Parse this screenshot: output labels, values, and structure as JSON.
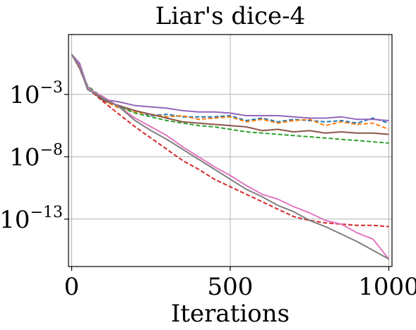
{
  "chart_data": {
    "type": "line",
    "title": "Liar's dice-4",
    "xlabel": "Iterations",
    "ylabel": "",
    "xlim": [
      -10,
      1010
    ],
    "ylim_log10": [
      -16.8,
      1.8
    ],
    "y_scale": "log",
    "grid": true,
    "x_ticks": [
      0,
      500,
      1000
    ],
    "x_tick_labels": [
      "0",
      "500",
      "1000"
    ],
    "y_ticks": [
      -3,
      -8,
      -13
    ],
    "y_tick_labels": [
      {
        "base": "10",
        "exp": "−3"
      },
      {
        "base": "10",
        "exp": "−8"
      },
      {
        "base": "10",
        "exp": "−13"
      }
    ],
    "x": [
      0,
      25,
      50,
      100,
      150,
      200,
      250,
      300,
      350,
      400,
      450,
      500,
      550,
      600,
      650,
      700,
      750,
      800,
      850,
      900,
      950,
      1000
    ],
    "series": [
      {
        "color": "#1f77b4",
        "dash": true,
        "log10_values": [
          0.2,
          -0.6,
          -2.6,
          -3.4,
          -4.0,
          -4.3,
          -4.7,
          -4.6,
          -4.8,
          -4.8,
          -4.8,
          -4.7,
          -5.1,
          -4.9,
          -5.2,
          -5.0,
          -5.1,
          -5.2,
          -5.1,
          -5.3,
          -4.9,
          -5.3
        ]
      },
      {
        "color": "#ff7f0e",
        "dash": true,
        "log10_values": [
          0.2,
          -0.8,
          -2.4,
          -3.5,
          -4.1,
          -4.4,
          -4.6,
          -4.8,
          -4.7,
          -5.0,
          -4.9,
          -4.8,
          -5.2,
          -5.0,
          -5.3,
          -5.1,
          -5.0,
          -5.5,
          -5.2,
          -5.4,
          -5.3,
          -5.8
        ]
      },
      {
        "color": "#2ca02c",
        "dash": true,
        "log10_values": [
          0.2,
          -0.8,
          -2.3,
          -3.3,
          -4.0,
          -4.5,
          -4.8,
          -5.1,
          -5.3,
          -5.5,
          -5.6,
          -5.8,
          -6.0,
          -6.1,
          -6.2,
          -6.3,
          -6.4,
          -6.5,
          -6.6,
          -6.7,
          -6.8,
          -6.9
        ]
      },
      {
        "color": "#d62728",
        "dash": true,
        "log10_values": [
          0.2,
          -0.9,
          -2.5,
          -3.6,
          -4.6,
          -5.6,
          -6.5,
          -7.4,
          -8.3,
          -9.0,
          -9.8,
          -10.4,
          -11.0,
          -11.6,
          -12.2,
          -12.8,
          -13.1,
          -13.3,
          -13.4,
          -13.5,
          -13.5,
          -13.6
        ]
      },
      {
        "color": "#9467bd",
        "dash": false,
        "log10_values": [
          0.2,
          -0.5,
          -2.4,
          -3.4,
          -3.6,
          -3.9,
          -4.0,
          -4.1,
          -4.3,
          -4.4,
          -4.4,
          -4.5,
          -4.7,
          -4.7,
          -4.7,
          -4.8,
          -4.9,
          -4.9,
          -4.8,
          -5.0,
          -5.0,
          -5.1
        ]
      },
      {
        "color": "#8c564b",
        "dash": false,
        "log10_values": [
          0.2,
          -0.9,
          -2.5,
          -3.5,
          -3.9,
          -4.3,
          -4.6,
          -4.9,
          -5.2,
          -5.3,
          -5.4,
          -5.5,
          -5.6,
          -5.9,
          -5.8,
          -6.0,
          -5.9,
          -6.1,
          -6.0,
          -6.1,
          -6.1,
          -6.2
        ]
      },
      {
        "color": "#e377c2",
        "dash": false,
        "log10_values": [
          0.2,
          -0.7,
          -2.5,
          -3.2,
          -4.0,
          -4.9,
          -5.6,
          -6.3,
          -7.2,
          -8.0,
          -8.8,
          -9.5,
          -10.3,
          -11.0,
          -11.4,
          -12.0,
          -12.5,
          -13.1,
          -13.4,
          -14.1,
          -14.6,
          -16.2
        ]
      },
      {
        "color": "#7f7f7f",
        "dash": false,
        "log10_values": [
          0.2,
          -0.8,
          -2.6,
          -3.3,
          -4.0,
          -5.1,
          -5.9,
          -6.6,
          -7.4,
          -8.2,
          -9.0,
          -9.8,
          -10.6,
          -11.2,
          -11.9,
          -12.4,
          -13.1,
          -13.6,
          -14.2,
          -14.8,
          -15.5,
          -16.2
        ]
      }
    ]
  }
}
